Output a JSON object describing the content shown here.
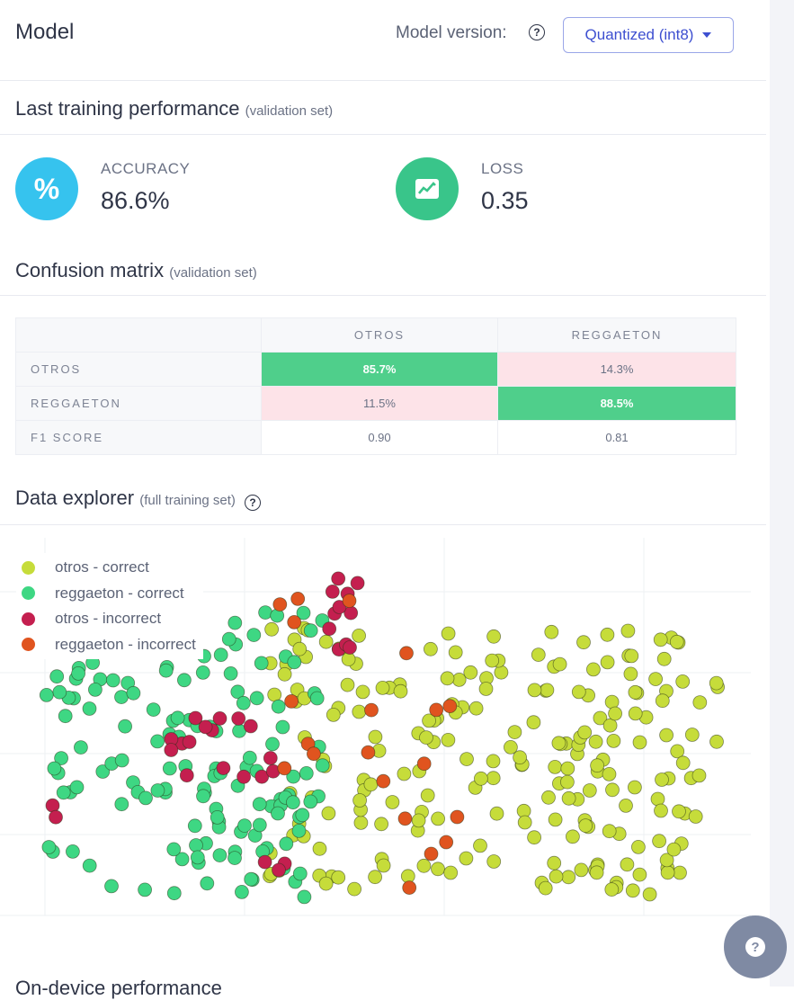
{
  "header": {
    "title": "Model",
    "version_label": "Model version:",
    "version_selected": "Quantized (int8)"
  },
  "training": {
    "title": "Last training performance",
    "subtitle": "(validation set)",
    "accuracy_label": "ACCURACY",
    "accuracy_value": "86.6%",
    "loss_label": "LOSS",
    "loss_value": "0.35"
  },
  "confusion": {
    "title": "Confusion matrix",
    "subtitle": "(validation set)",
    "columns": [
      "OTROS",
      "REGGAETON"
    ],
    "rows": [
      {
        "label": "OTROS",
        "cells": [
          "85.7%",
          "14.3%"
        ]
      },
      {
        "label": "REGGAETON",
        "cells": [
          "11.5%",
          "88.5%"
        ]
      }
    ],
    "f1": {
      "label": "F1 SCORE",
      "cells": [
        "0.90",
        "0.81"
      ]
    }
  },
  "explorer": {
    "title": "Data explorer",
    "subtitle": "(full training set)",
    "legend": [
      {
        "label": "otros - correct",
        "color": "#c6dc3a"
      },
      {
        "label": "reggaeton - correct",
        "color": "#3ed783"
      },
      {
        "label": "otros - incorrect",
        "color": "#c41f4f"
      },
      {
        "label": "reggaeton - incorrect",
        "color": "#e0541f"
      }
    ]
  },
  "next_section": {
    "title": "On-device performance"
  },
  "colors": {
    "accent": "#3d4fd0",
    "accuracy_icon": "#36c3ee",
    "loss_icon": "#39c58a"
  },
  "icons": {
    "accuracy": "percent-icon",
    "loss": "chart-line-icon",
    "help": "question-circle-icon"
  }
}
